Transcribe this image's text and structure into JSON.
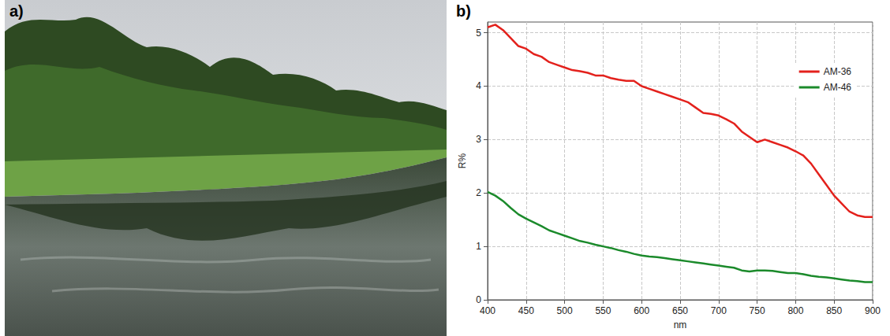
{
  "panel_labels": [
    "a)",
    "b)"
  ],
  "chart_data": {
    "type": "line",
    "x_label": "nm",
    "y_label": "R%",
    "x": [
      400,
      410,
      420,
      430,
      440,
      450,
      460,
      470,
      480,
      490,
      500,
      510,
      520,
      530,
      540,
      550,
      560,
      570,
      580,
      590,
      600,
      610,
      620,
      630,
      640,
      650,
      660,
      670,
      680,
      690,
      700,
      710,
      720,
      730,
      740,
      750,
      760,
      770,
      780,
      790,
      800,
      810,
      820,
      830,
      840,
      850,
      860,
      870,
      880,
      890,
      900
    ],
    "series": [
      {
        "name": "AM-36",
        "color": "#e3211c",
        "values": [
          5.1,
          5.15,
          5.05,
          4.9,
          4.75,
          4.7,
          4.6,
          4.55,
          4.45,
          4.4,
          4.35,
          4.3,
          4.28,
          4.25,
          4.2,
          4.2,
          4.15,
          4.12,
          4.1,
          4.1,
          4.0,
          3.95,
          3.9,
          3.85,
          3.8,
          3.75,
          3.7,
          3.6,
          3.5,
          3.48,
          3.45,
          3.38,
          3.3,
          3.15,
          3.05,
          2.95,
          3.0,
          2.95,
          2.9,
          2.85,
          2.78,
          2.7,
          2.55,
          2.35,
          2.15,
          1.95,
          1.8,
          1.65,
          1.58,
          1.55,
          1.55
        ]
      },
      {
        "name": "AM-46",
        "color": "#1b8a2b",
        "values": [
          2.02,
          1.95,
          1.85,
          1.72,
          1.6,
          1.52,
          1.45,
          1.38,
          1.3,
          1.25,
          1.2,
          1.15,
          1.1,
          1.07,
          1.03,
          1.0,
          0.97,
          0.93,
          0.9,
          0.86,
          0.83,
          0.81,
          0.8,
          0.78,
          0.76,
          0.74,
          0.72,
          0.7,
          0.68,
          0.66,
          0.64,
          0.62,
          0.6,
          0.55,
          0.53,
          0.55,
          0.55,
          0.54,
          0.52,
          0.5,
          0.5,
          0.48,
          0.45,
          0.43,
          0.42,
          0.4,
          0.38,
          0.36,
          0.35,
          0.33,
          0.33
        ]
      }
    ],
    "xlim": [
      400,
      900
    ],
    "xticks": [
      400,
      450,
      500,
      550,
      600,
      650,
      700,
      750,
      800,
      850,
      900
    ],
    "ylim": [
      0,
      5.2
    ],
    "yticks": [
      0,
      1,
      2,
      3,
      4,
      5
    ],
    "grid": true,
    "legend": "upper right"
  }
}
